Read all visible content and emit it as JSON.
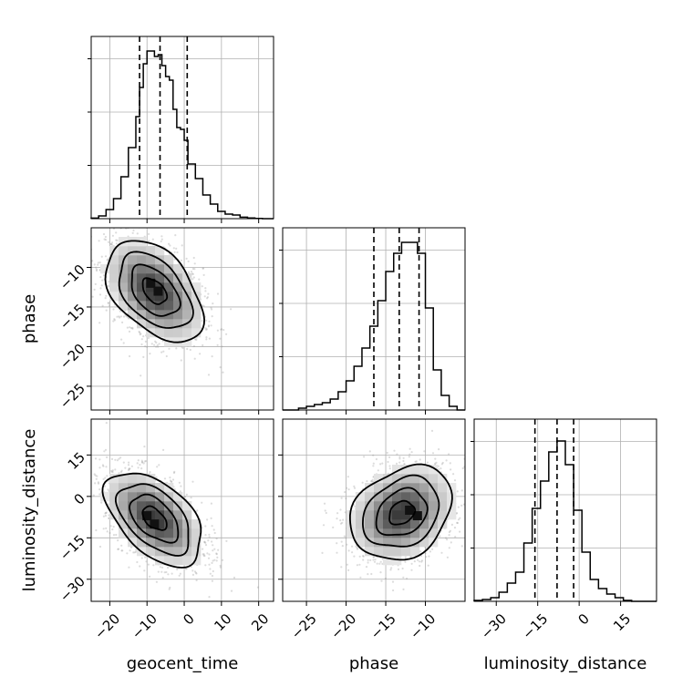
{
  "chart_data": {
    "type": "corner",
    "parameters": [
      {
        "name": "geocent_time",
        "range": [
          -25,
          24
        ],
        "ticks": [
          -20,
          -10,
          0,
          10,
          20
        ],
        "tick_labels": [
          "−20",
          "−10",
          "0",
          "10",
          "20"
        ],
        "quantiles": [
          -12,
          -6.5,
          0.8
        ],
        "hist_bin_edges": [
          -25,
          -23,
          -21,
          -19,
          -17,
          -15,
          -13,
          -12,
          -11,
          -10,
          -9,
          -8,
          -7,
          -6,
          -5,
          -4,
          -3,
          -2,
          -1,
          0,
          1,
          3,
          5,
          7,
          9,
          11,
          13,
          15,
          17,
          19,
          21,
          24
        ],
        "hist_density": [
          0.003,
          0.015,
          0.05,
          0.11,
          0.23,
          0.39,
          0.56,
          0.72,
          0.85,
          0.92,
          0.92,
          0.89,
          0.9,
          0.84,
          0.78,
          0.76,
          0.6,
          0.5,
          0.49,
          0.43,
          0.3,
          0.22,
          0.13,
          0.08,
          0.04,
          0.025,
          0.02,
          0.008,
          0.004,
          0.001,
          0.0
        ]
      },
      {
        "name": "phase",
        "range": [
          -28,
          -5
        ],
        "ticks": [
          -25,
          -20,
          -15,
          -10
        ],
        "tick_labels": [
          "−25",
          "−20",
          "−15",
          "−10"
        ],
        "quantiles": [
          -16.5,
          -13.3,
          -10.8
        ],
        "hist_bin_edges": [
          -28,
          -27,
          -26,
          -25,
          -24,
          -23,
          -22,
          -21,
          -20,
          -19,
          -18,
          -17,
          -16,
          -15,
          -14,
          -13,
          -12,
          -11,
          -10,
          -9,
          -8,
          -7,
          -6,
          -5
        ],
        "hist_density": [
          0.0,
          0.0,
          0.01,
          0.02,
          0.03,
          0.04,
          0.06,
          0.1,
          0.16,
          0.24,
          0.34,
          0.46,
          0.6,
          0.76,
          0.86,
          0.92,
          0.92,
          0.86,
          0.56,
          0.22,
          0.08,
          0.02,
          0.0
        ]
      },
      {
        "name": "luminosity_distance",
        "range": [
          -38,
          28
        ],
        "ticks": [
          -30,
          -15,
          0,
          15
        ],
        "tick_labels": [
          "−30",
          "−15",
          "0",
          "15"
        ],
        "quantiles": [
          -16,
          -8,
          -2
        ],
        "hist_bin_edges": [
          -38,
          -35,
          -32,
          -29,
          -26,
          -23,
          -20,
          -17,
          -14,
          -11,
          -8,
          -5,
          -2,
          1,
          4,
          7,
          10,
          13,
          16,
          19,
          22,
          25,
          28
        ],
        "hist_density": [
          0.005,
          0.01,
          0.02,
          0.05,
          0.1,
          0.16,
          0.32,
          0.51,
          0.66,
          0.82,
          0.88,
          0.75,
          0.5,
          0.27,
          0.12,
          0.07,
          0.04,
          0.02,
          0.005,
          0.0,
          0.0,
          0.0
        ]
      }
    ],
    "pairs": [
      {
        "x_param": 0,
        "y_param": 1,
        "center": [
          -8,
          -13
        ],
        "sd": [
          6.5,
          3.2
        ],
        "corr": -0.45,
        "peak_cells": [
          [
            -9,
            -12
          ],
          [
            -7,
            -13
          ]
        ]
      },
      {
        "x_param": 0,
        "y_param": 2,
        "center": [
          -8,
          -8
        ],
        "sd": [
          6.5,
          8.5
        ],
        "corr": -0.5,
        "peak_cells": [
          [
            -10,
            -7
          ],
          [
            -8,
            -10
          ]
        ]
      },
      {
        "x_param": 1,
        "y_param": 2,
        "center": [
          -13,
          -6
        ],
        "sd": [
          3.2,
          8.5
        ],
        "corr": 0.25,
        "peak_cells": [
          [
            -12,
            -5
          ],
          [
            -11,
            -7
          ]
        ]
      }
    ],
    "contour_levels_sigma": [
      0.5,
      1.0,
      1.5,
      2.0
    ],
    "grid": true,
    "colors": {
      "line": "#000000",
      "grid": "#b0b0b0",
      "points": "#9a9a9a",
      "quantile_line": "#000000"
    }
  }
}
